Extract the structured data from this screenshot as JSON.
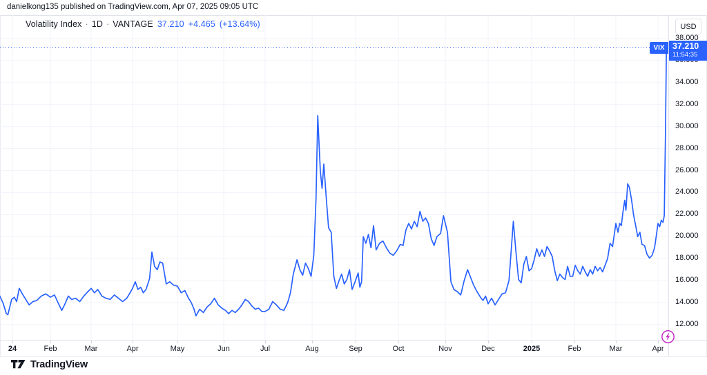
{
  "attribution": {
    "text": "danielkong135 published on TradingView.com, Apr 07, 2025 09:05 UTC"
  },
  "legend": {
    "title": "Volatility Index",
    "sep": "·",
    "timeframe": "1D",
    "provider": "VANTAGE",
    "price": "37.210",
    "change": "+4.465",
    "change_pct": "(+13.64%)"
  },
  "price_scale": {
    "currency_button": "USD"
  },
  "price_label": {
    "symbol": "VIX",
    "price": "37.210",
    "time": "11:54:35"
  },
  "footer": {
    "logo_text": "TradingView"
  },
  "colors": {
    "accent": "#2962FF",
    "grid": "#F0F3FA",
    "border": "#E0E3EB",
    "text": "#131722",
    "muted": "#787B86",
    "flash": "#C22AC4",
    "label_text": "#FFFFFF"
  },
  "chart_data": {
    "type": "line",
    "title": "Volatility Index",
    "symbol": "VIX",
    "timeframe": "1D",
    "provider": "VANTAGE",
    "currency": "USD",
    "last_price": 37.21,
    "change": 4.465,
    "change_pct": 13.64,
    "last_time": "11:54:35",
    "grid": true,
    "legend_position": "top-left",
    "x_ticks": [
      "24",
      "Feb",
      "Mar",
      "Apr",
      "May",
      "Jun",
      "Jul",
      "Aug",
      "Sep",
      "Oct",
      "Nov",
      "Dec",
      "2025",
      "Feb",
      "Mar",
      "Apr"
    ],
    "y_ticks": [
      38,
      36,
      34,
      32,
      30,
      28,
      26,
      24,
      22,
      20,
      18,
      16,
      14,
      12
    ],
    "ylim": [
      10.6,
      40.1
    ],
    "points": [
      [
        -0.33,
        14.6
      ],
      [
        -0.24,
        13.9
      ],
      [
        -0.16,
        13.0
      ],
      [
        -0.12,
        12.9
      ],
      [
        -0.02,
        14.3
      ],
      [
        0.05,
        14.5
      ],
      [
        0.11,
        14.1
      ],
      [
        0.18,
        15.3
      ],
      [
        0.26,
        14.8
      ],
      [
        0.35,
        14.3
      ],
      [
        0.44,
        13.8
      ],
      [
        0.54,
        14.1
      ],
      [
        0.64,
        14.2
      ],
      [
        0.76,
        14.6
      ],
      [
        0.88,
        14.8
      ],
      [
        1.0,
        14.5
      ],
      [
        1.1,
        14.7
      ],
      [
        1.2,
        13.9
      ],
      [
        1.28,
        13.3
      ],
      [
        1.36,
        13.9
      ],
      [
        1.44,
        14.6
      ],
      [
        1.52,
        14.3
      ],
      [
        1.62,
        14.4
      ],
      [
        1.72,
        14.1
      ],
      [
        1.82,
        14.6
      ],
      [
        1.92,
        15.0
      ],
      [
        2.0,
        15.3
      ],
      [
        2.08,
        14.9
      ],
      [
        2.16,
        15.2
      ],
      [
        2.26,
        14.6
      ],
      [
        2.36,
        14.4
      ],
      [
        2.46,
        14.3
      ],
      [
        2.56,
        14.7
      ],
      [
        2.66,
        14.4
      ],
      [
        2.76,
        14.1
      ],
      [
        2.86,
        14.4
      ],
      [
        2.94,
        14.9
      ],
      [
        3.0,
        15.3
      ],
      [
        3.06,
        15.9
      ],
      [
        3.12,
        15.2
      ],
      [
        3.18,
        15.4
      ],
      [
        3.24,
        14.9
      ],
      [
        3.3,
        15.2
      ],
      [
        3.38,
        16.2
      ],
      [
        3.43,
        18.6
      ],
      [
        3.49,
        17.3
      ],
      [
        3.55,
        17.0
      ],
      [
        3.61,
        17.7
      ],
      [
        3.67,
        17.6
      ],
      [
        3.75,
        15.7
      ],
      [
        3.83,
        15.9
      ],
      [
        3.91,
        15.6
      ],
      [
        4.0,
        15.5
      ],
      [
        4.08,
        14.9
      ],
      [
        4.16,
        15.1
      ],
      [
        4.24,
        14.4
      ],
      [
        4.3,
        14.0
      ],
      [
        4.36,
        13.4
      ],
      [
        4.4,
        12.8
      ],
      [
        4.48,
        13.4
      ],
      [
        4.56,
        13.1
      ],
      [
        4.64,
        13.6
      ],
      [
        4.72,
        13.9
      ],
      [
        4.8,
        14.4
      ],
      [
        4.88,
        13.8
      ],
      [
        4.96,
        13.5
      ],
      [
        5.04,
        13.3
      ],
      [
        5.12,
        13.0
      ],
      [
        5.2,
        13.3
      ],
      [
        5.28,
        13.1
      ],
      [
        5.36,
        13.4
      ],
      [
        5.44,
        13.8
      ],
      [
        5.52,
        14.3
      ],
      [
        5.6,
        14.1
      ],
      [
        5.68,
        13.7
      ],
      [
        5.76,
        13.4
      ],
      [
        5.84,
        13.5
      ],
      [
        5.92,
        13.2
      ],
      [
        6.0,
        13.2
      ],
      [
        6.08,
        13.4
      ],
      [
        6.16,
        14.1
      ],
      [
        6.24,
        13.8
      ],
      [
        6.32,
        13.4
      ],
      [
        6.4,
        13.3
      ],
      [
        6.48,
        14.0
      ],
      [
        6.54,
        14.9
      ],
      [
        6.6,
        16.6
      ],
      [
        6.68,
        17.9
      ],
      [
        6.74,
        17.0
      ],
      [
        6.8,
        16.5
      ],
      [
        6.86,
        17.6
      ],
      [
        6.92,
        17.1
      ],
      [
        6.98,
        16.4
      ],
      [
        7.04,
        18.3
      ],
      [
        7.09,
        23.4
      ],
      [
        7.13,
        31.0
      ],
      [
        7.19,
        25.9
      ],
      [
        7.23,
        24.4
      ],
      [
        7.27,
        26.6
      ],
      [
        7.33,
        23.3
      ],
      [
        7.38,
        20.8
      ],
      [
        7.44,
        20.4
      ],
      [
        7.5,
        16.4
      ],
      [
        7.56,
        15.3
      ],
      [
        7.62,
        16.0
      ],
      [
        7.68,
        16.6
      ],
      [
        7.74,
        15.7
      ],
      [
        7.8,
        16.1
      ],
      [
        7.86,
        17.0
      ],
      [
        7.92,
        15.2
      ],
      [
        7.98,
        15.8
      ],
      [
        8.06,
        16.7
      ],
      [
        8.1,
        15.4
      ],
      [
        8.14,
        15.9
      ],
      [
        8.18,
        20.0
      ],
      [
        8.24,
        19.4
      ],
      [
        8.3,
        20.2
      ],
      [
        8.36,
        19.0
      ],
      [
        8.42,
        21.0
      ],
      [
        8.48,
        18.8
      ],
      [
        8.56,
        19.4
      ],
      [
        8.64,
        19.6
      ],
      [
        8.72,
        19.0
      ],
      [
        8.8,
        18.5
      ],
      [
        8.88,
        18.3
      ],
      [
        8.96,
        18.7
      ],
      [
        9.04,
        19.3
      ],
      [
        9.1,
        19.2
      ],
      [
        9.16,
        20.6
      ],
      [
        9.22,
        21.2
      ],
      [
        9.28,
        20.7
      ],
      [
        9.34,
        21.4
      ],
      [
        9.4,
        20.9
      ],
      [
        9.46,
        22.3
      ],
      [
        9.52,
        21.4
      ],
      [
        9.58,
        21.7
      ],
      [
        9.64,
        21.2
      ],
      [
        9.7,
        19.8
      ],
      [
        9.76,
        19.2
      ],
      [
        9.82,
        20.0
      ],
      [
        9.9,
        20.3
      ],
      [
        9.96,
        21.9
      ],
      [
        10.05,
        20.4
      ],
      [
        10.13,
        15.9
      ],
      [
        10.2,
        15.2
      ],
      [
        10.28,
        15.0
      ],
      [
        10.36,
        14.7
      ],
      [
        10.44,
        16.0
      ],
      [
        10.52,
        17.0
      ],
      [
        10.58,
        16.4
      ],
      [
        10.66,
        15.6
      ],
      [
        10.74,
        15.0
      ],
      [
        10.82,
        14.5
      ],
      [
        10.88,
        14.2
      ],
      [
        10.94,
        14.6
      ],
      [
        11.0,
        13.9
      ],
      [
        11.08,
        14.4
      ],
      [
        11.16,
        13.8
      ],
      [
        11.24,
        14.3
      ],
      [
        11.32,
        14.8
      ],
      [
        11.4,
        14.9
      ],
      [
        11.48,
        16.0
      ],
      [
        11.58,
        21.4
      ],
      [
        11.64,
        18.6
      ],
      [
        11.7,
        16.1
      ],
      [
        11.76,
        15.8
      ],
      [
        11.82,
        17.5
      ],
      [
        11.88,
        18.2
      ],
      [
        11.94,
        16.9
      ],
      [
        12.0,
        17.1
      ],
      [
        12.06,
        17.9
      ],
      [
        12.12,
        18.9
      ],
      [
        12.18,
        18.2
      ],
      [
        12.24,
        18.8
      ],
      [
        12.3,
        18.2
      ],
      [
        12.36,
        19.1
      ],
      [
        12.42,
        18.7
      ],
      [
        12.48,
        18.2
      ],
      [
        12.54,
        16.9
      ],
      [
        12.6,
        16.0
      ],
      [
        12.66,
        16.6
      ],
      [
        12.72,
        16.3
      ],
      [
        12.78,
        16.1
      ],
      [
        12.84,
        17.3
      ],
      [
        12.9,
        16.4
      ],
      [
        12.96,
        16.4
      ],
      [
        13.02,
        17.4
      ],
      [
        13.08,
        16.9
      ],
      [
        13.14,
        16.6
      ],
      [
        13.2,
        17.3
      ],
      [
        13.26,
        16.8
      ],
      [
        13.32,
        16.4
      ],
      [
        13.38,
        17.0
      ],
      [
        13.44,
        16.6
      ],
      [
        13.5,
        17.3
      ],
      [
        13.56,
        16.9
      ],
      [
        13.62,
        17.2
      ],
      [
        13.68,
        16.8
      ],
      [
        13.74,
        17.4
      ],
      [
        13.8,
        18.0
      ],
      [
        13.86,
        19.4
      ],
      [
        13.92,
        19.1
      ],
      [
        14.0,
        21.2
      ],
      [
        14.05,
        20.4
      ],
      [
        14.09,
        21.2
      ],
      [
        14.13,
        21.0
      ],
      [
        14.17,
        22.3
      ],
      [
        14.21,
        23.3
      ],
      [
        14.24,
        22.4
      ],
      [
        14.28,
        24.8
      ],
      [
        14.32,
        24.5
      ],
      [
        14.37,
        23.4
      ],
      [
        14.42,
        22.0
      ],
      [
        14.47,
        21.0
      ],
      [
        14.52,
        20.0
      ],
      [
        14.57,
        20.4
      ],
      [
        14.62,
        19.3
      ],
      [
        14.68,
        19.2
      ],
      [
        14.74,
        18.4
      ],
      [
        14.8,
        18.05
      ],
      [
        14.86,
        18.3
      ],
      [
        14.92,
        19.0
      ],
      [
        14.96,
        20.1
      ],
      [
        15.0,
        21.2
      ],
      [
        15.04,
        20.9
      ],
      [
        15.08,
        21.5
      ],
      [
        15.12,
        21.3
      ],
      [
        15.15,
        21.9
      ],
      [
        15.18,
        30.0
      ],
      [
        15.2,
        37.21
      ]
    ]
  }
}
